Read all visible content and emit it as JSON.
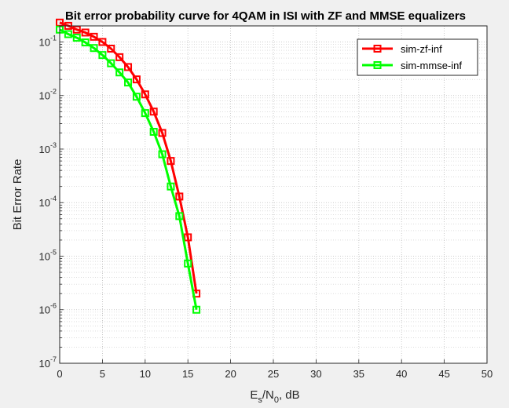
{
  "chart_data": {
    "type": "line",
    "title": "Bit error probability curve for 4QAM in ISI with ZF and MMSE equalizers",
    "xlabel": {
      "base": "E",
      "sub1": "s",
      "mid": "/N",
      "sub2": "0",
      "tail": ", dB"
    },
    "ylabel": "Bit Error Rate",
    "xlim": [
      0,
      50
    ],
    "ylim_log10": [
      -7,
      -0.7
    ],
    "yscale": "log",
    "grid": true,
    "legend_position": "top-right",
    "x_ticks": [
      0,
      5,
      10,
      15,
      20,
      25,
      30,
      35,
      40,
      45,
      50
    ],
    "y_tick_exponents": [
      -7,
      -6,
      -5,
      -4,
      -3,
      -2,
      -1
    ],
    "y_tick_base": "10",
    "series": [
      {
        "name": "sim-zf-inf",
        "color": "#ff0000",
        "marker": "square",
        "x": [
          0,
          1,
          2,
          3,
          4,
          5,
          6,
          7,
          8,
          9,
          10,
          11,
          12,
          13,
          14,
          15,
          16
        ],
        "y": [
          0.23,
          0.2,
          0.17,
          0.15,
          0.125,
          0.1,
          0.075,
          0.052,
          0.034,
          0.02,
          0.0105,
          0.005,
          0.002,
          0.0006,
          0.00013,
          2.25e-05,
          2e-06
        ]
      },
      {
        "name": "sim-mmse-inf",
        "color": "#00ff00",
        "marker": "square",
        "x": [
          0,
          1,
          2,
          3,
          4,
          5,
          6,
          7,
          8,
          9,
          10,
          11,
          12,
          13,
          14,
          15,
          16
        ],
        "y": [
          0.17,
          0.14,
          0.12,
          0.098,
          0.077,
          0.057,
          0.04,
          0.027,
          0.0175,
          0.0095,
          0.0047,
          0.0021,
          0.0008,
          0.0002,
          5.6e-05,
          7.3e-06,
          1e-06
        ]
      }
    ]
  }
}
